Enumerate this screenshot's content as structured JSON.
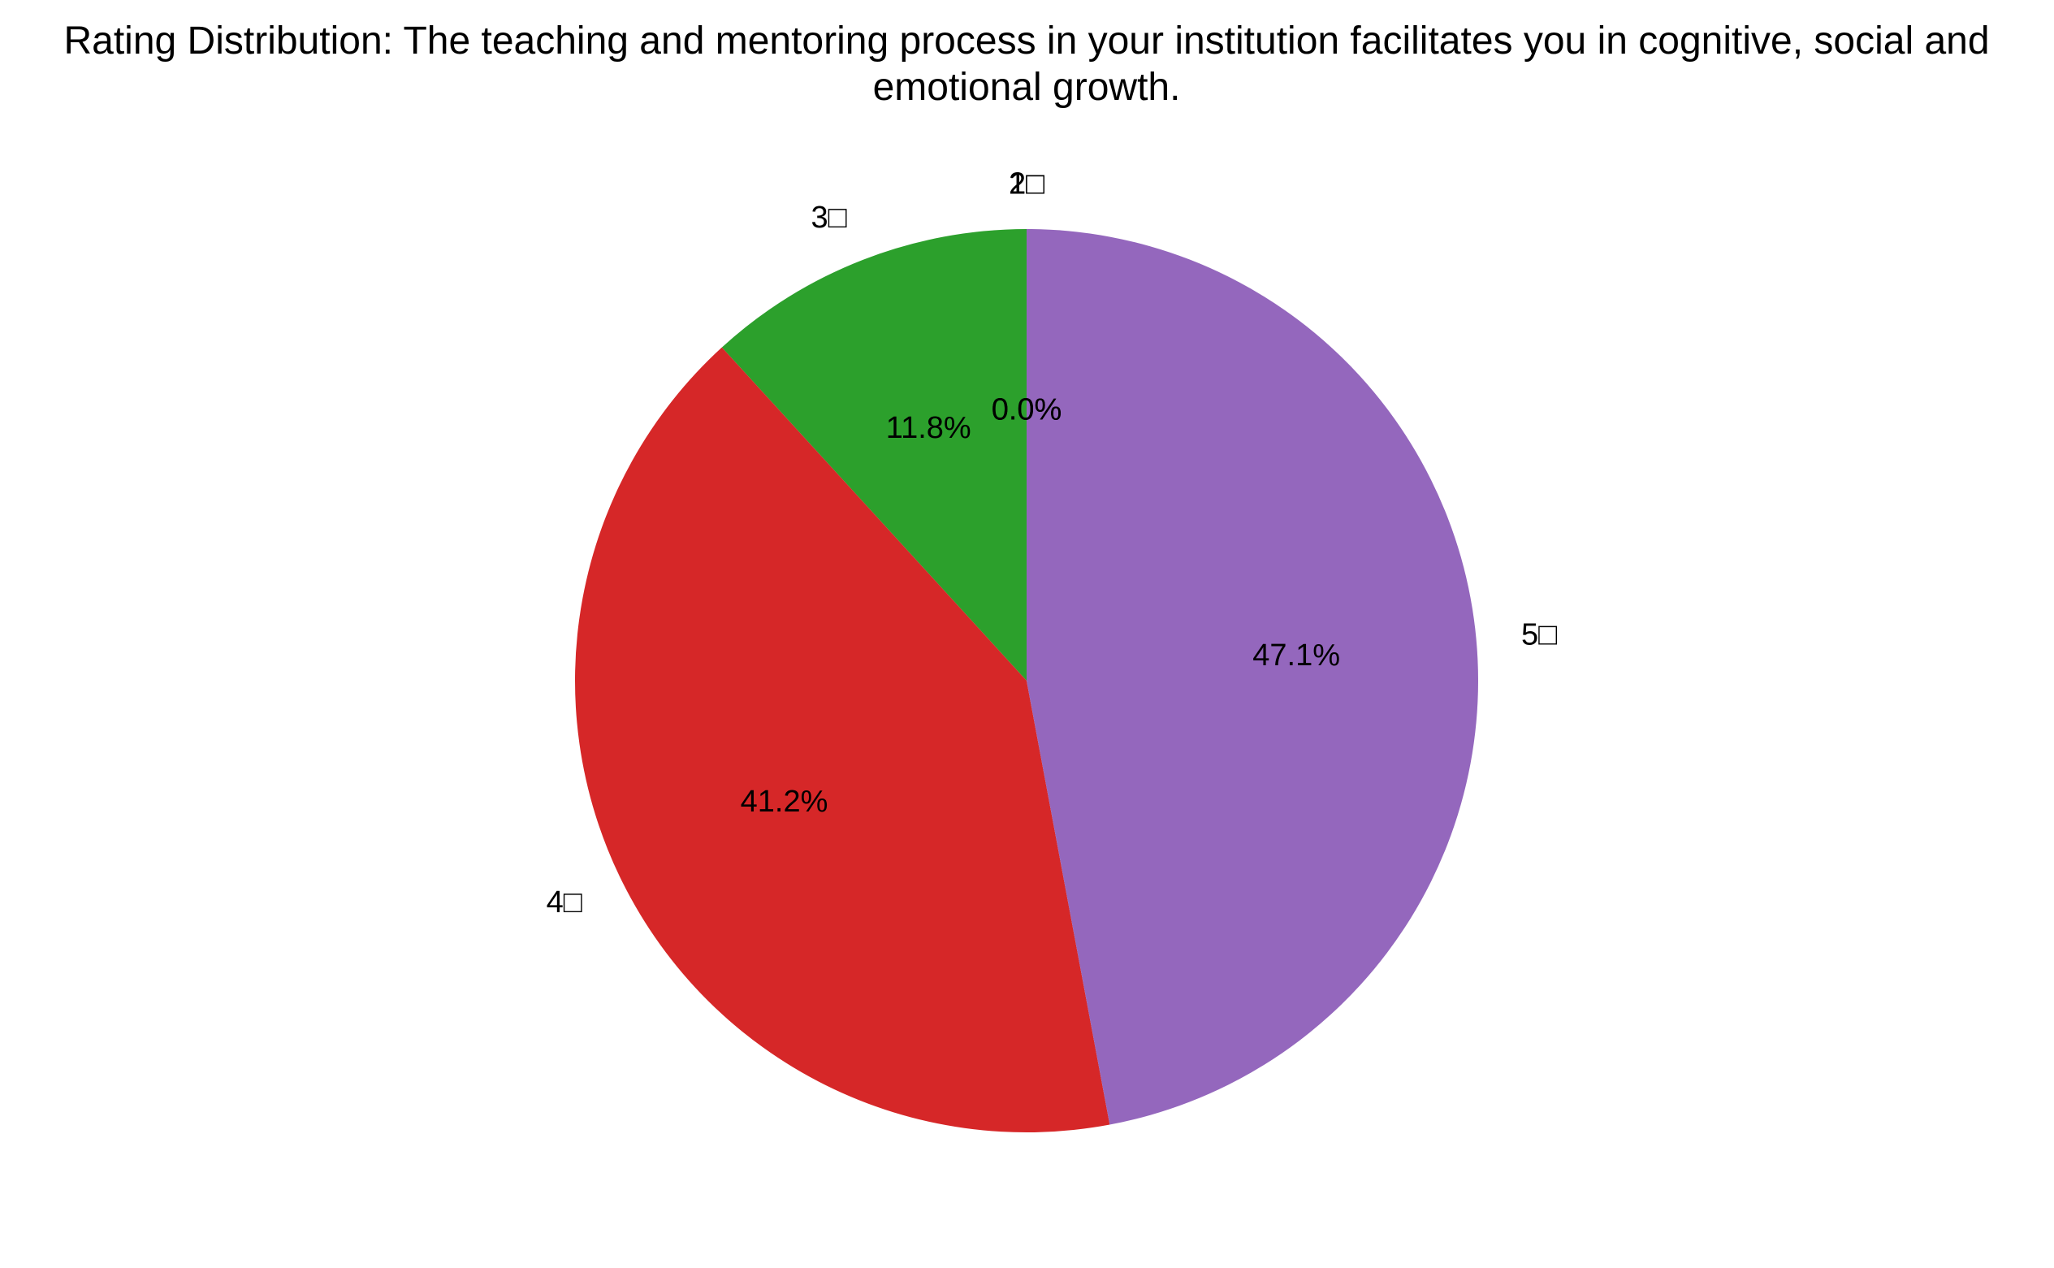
{
  "chart_data": {
    "type": "pie",
    "title_lines": [
      "Rating Distribution: The teaching and mentoring process in your institution facilitates you in cognitive, social and",
      "emotional growth."
    ],
    "slices": [
      {
        "label": "1□",
        "value": 0.0,
        "pct_label": "0.0%",
        "color": "#1f77b4"
      },
      {
        "label": "2□",
        "value": 0.0,
        "pct_label": "0.0%",
        "color": "#ff7f0e"
      },
      {
        "label": "3□",
        "value": 11.8,
        "pct_label": "11.8%",
        "color": "#2ca02c"
      },
      {
        "label": "4□",
        "value": 41.2,
        "pct_label": "41.2%",
        "color": "#d62728"
      },
      {
        "label": "5□",
        "value": 47.1,
        "pct_label": "47.1%",
        "color": "#9467bd"
      }
    ],
    "start_angle_deg": 90,
    "direction": "counterclockwise"
  }
}
